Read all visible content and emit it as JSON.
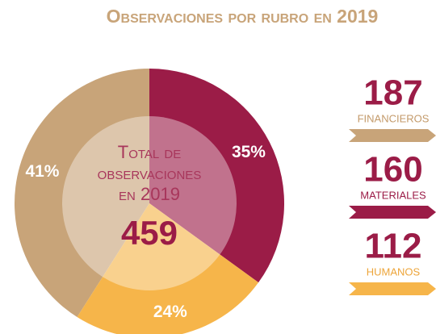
{
  "chart_data": {
    "type": "pie",
    "title": "Observaciones por rubro en 2019",
    "categories": [
      "FINANCIEROS",
      "MATERIALES",
      "HUMANOS"
    ],
    "values": [
      41,
      35,
      24
    ],
    "value_labels": [
      "41%",
      "35%",
      "24%"
    ],
    "counts": [
      187,
      160,
      112
    ],
    "colors": [
      "#c8a479",
      "#9b1c47",
      "#f6b54a"
    ],
    "label_colors": [
      "#c39a6a",
      "#9b1c47",
      "#eda53a"
    ],
    "center_label": [
      "Total de",
      "observaciones",
      "en 2019"
    ],
    "total": 459
  }
}
